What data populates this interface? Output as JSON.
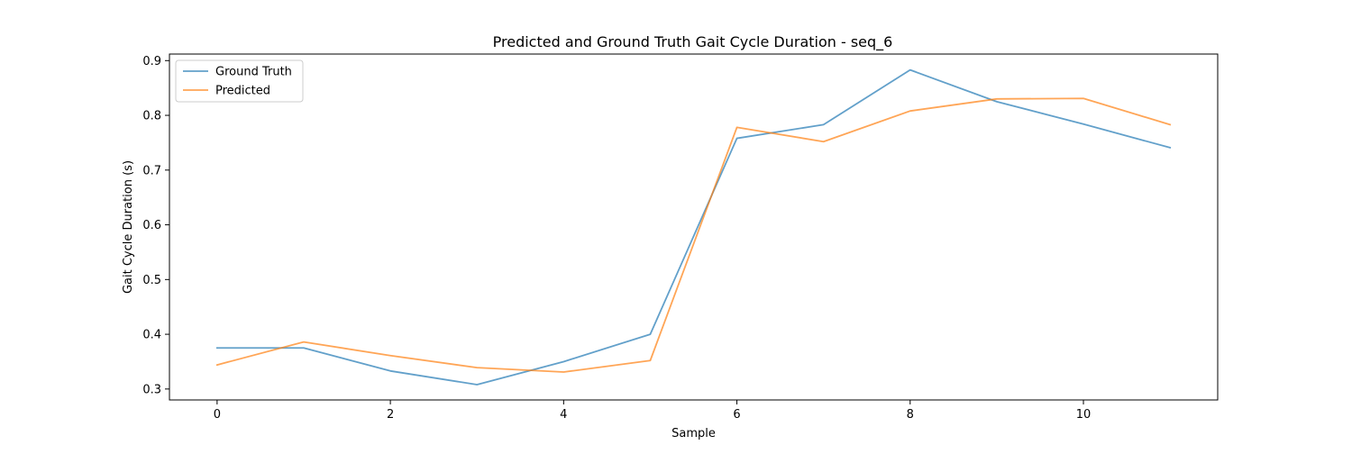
{
  "chart_data": {
    "type": "line",
    "title": "Predicted and Ground Truth Gait Cycle Duration - seq_6",
    "xlabel": "Sample",
    "ylabel": "Gait Cycle Duration (s)",
    "x": [
      0,
      1,
      2,
      3,
      4,
      5,
      6,
      7,
      8,
      9,
      10,
      11
    ],
    "xlim": [
      -0.55,
      11.55
    ],
    "ylim": [
      0.28,
      0.912
    ],
    "xticks": [
      0,
      2,
      4,
      6,
      8,
      10
    ],
    "yticks": [
      0.3,
      0.4,
      0.5,
      0.6,
      0.7,
      0.8,
      0.9
    ],
    "grid": false,
    "legend_position": "top-left",
    "series": [
      {
        "name": "Ground Truth",
        "color": "#1f77b4",
        "values": [
          0.375,
          0.375,
          0.333,
          0.308,
          0.35,
          0.4,
          0.758,
          0.783,
          0.883,
          0.825,
          0.784,
          0.741
        ]
      },
      {
        "name": "Predicted",
        "color": "#ff7f0e",
        "values": [
          0.344,
          0.386,
          0.361,
          0.339,
          0.331,
          0.352,
          0.778,
          0.752,
          0.808,
          0.83,
          0.831,
          0.783
        ]
      }
    ]
  }
}
